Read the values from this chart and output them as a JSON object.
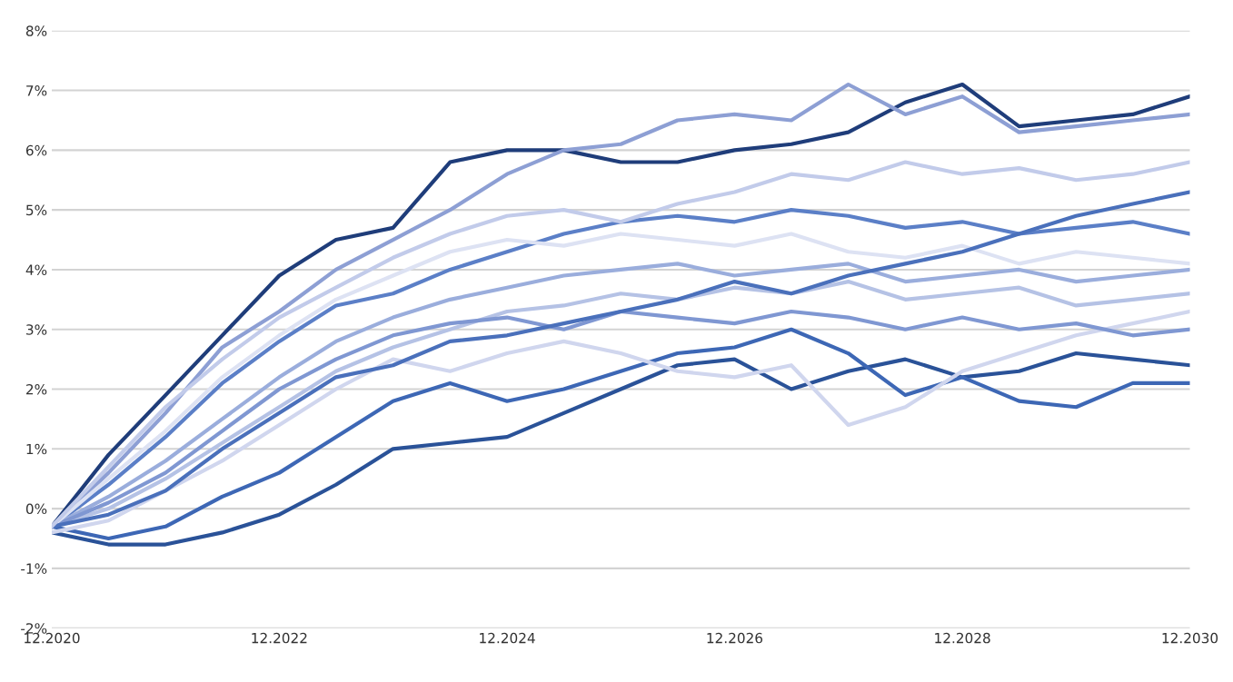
{
  "chart_data": {
    "type": "line",
    "x": [
      "2020-12",
      "2021-06",
      "2021-12",
      "2022-06",
      "2022-12",
      "2023-06",
      "2023-12",
      "2024-06",
      "2024-12",
      "2025-06",
      "2025-12",
      "2026-06",
      "2026-12",
      "2027-06",
      "2027-12",
      "2028-06",
      "2028-12",
      "2029-06",
      "2029-12",
      "2030-06",
      "2030-12"
    ],
    "series": [
      {
        "color": "#1f3d7a",
        "values": [
          -0.3,
          0.9,
          1.9,
          2.9,
          3.9,
          4.5,
          4.7,
          5.8,
          6.0,
          6.0,
          5.8,
          5.8,
          6.0,
          6.1,
          6.3,
          6.8,
          7.1,
          6.4,
          6.5,
          6.6,
          6.9
        ]
      },
      {
        "color": "#8d9fd4",
        "values": [
          -0.3,
          0.6,
          1.6,
          2.7,
          3.3,
          4.0,
          4.5,
          5.0,
          5.6,
          6.0,
          6.1,
          6.5,
          6.6,
          6.5,
          7.1,
          6.6,
          6.9,
          6.3,
          6.4,
          6.5,
          6.6
        ]
      },
      {
        "color": "#2a5298",
        "values": [
          -0.4,
          -0.6,
          -0.6,
          -0.4,
          -0.1,
          0.4,
          1.0,
          1.1,
          1.2,
          1.6,
          2.0,
          2.4,
          2.5,
          2.0,
          2.3,
          2.5,
          2.2,
          2.3,
          2.6,
          2.5,
          2.4
        ]
      },
      {
        "color": "#3d67b5",
        "values": [
          -0.3,
          -0.5,
          -0.3,
          0.2,
          0.6,
          1.2,
          1.8,
          2.1,
          1.8,
          2.0,
          2.3,
          2.6,
          2.7,
          3.0,
          2.6,
          1.9,
          2.2,
          1.8,
          1.7,
          2.1,
          2.1
        ]
      },
      {
        "color": "#d0d6ee",
        "values": [
          -0.4,
          -0.2,
          0.3,
          0.8,
          1.4,
          2.0,
          2.5,
          2.3,
          2.6,
          2.8,
          2.6,
          2.3,
          2.2,
          2.4,
          1.4,
          1.7,
          2.3,
          2.6,
          2.9,
          3.1,
          3.3
        ]
      },
      {
        "color": "#5b7fc7",
        "values": [
          -0.3,
          0.4,
          1.2,
          2.1,
          2.8,
          3.4,
          3.6,
          4.0,
          4.3,
          4.6,
          4.8,
          4.9,
          4.8,
          5.0,
          4.9,
          4.7,
          4.8,
          4.6,
          4.7,
          4.8,
          4.6
        ]
      },
      {
        "color": "#9aaddc",
        "values": [
          -0.3,
          0.2,
          0.8,
          1.5,
          2.2,
          2.8,
          3.2,
          3.5,
          3.7,
          3.9,
          4.0,
          4.1,
          3.9,
          4.0,
          4.1,
          3.8,
          3.9,
          4.0,
          3.8,
          3.9,
          4.0
        ]
      },
      {
        "color": "#b5c2e5",
        "values": [
          -0.3,
          0.0,
          0.5,
          1.1,
          1.7,
          2.3,
          2.7,
          3.0,
          3.3,
          3.4,
          3.6,
          3.5,
          3.7,
          3.6,
          3.8,
          3.5,
          3.6,
          3.7,
          3.4,
          3.5,
          3.6
        ]
      },
      {
        "color": "#7f97d2",
        "values": [
          -0.3,
          0.1,
          0.6,
          1.3,
          2.0,
          2.5,
          2.9,
          3.1,
          3.2,
          3.0,
          3.3,
          3.2,
          3.1,
          3.3,
          3.2,
          3.0,
          3.2,
          3.0,
          3.1,
          2.9,
          3.0
        ]
      },
      {
        "color": "#dde2f3",
        "values": [
          -0.3,
          0.5,
          1.3,
          2.2,
          2.9,
          3.5,
          3.9,
          4.3,
          4.5,
          4.4,
          4.6,
          4.5,
          4.4,
          4.6,
          4.3,
          4.2,
          4.4,
          4.1,
          4.3,
          4.2,
          4.1
        ]
      },
      {
        "color": "#4a70bb",
        "values": [
          -0.3,
          -0.1,
          0.3,
          1.0,
          1.6,
          2.2,
          2.4,
          2.8,
          2.9,
          3.1,
          3.3,
          3.5,
          3.8,
          3.6,
          3.9,
          4.1,
          4.3,
          4.6,
          4.9,
          5.1,
          5.3
        ]
      },
      {
        "color": "#c2cbea",
        "values": [
          -0.3,
          0.7,
          1.7,
          2.5,
          3.2,
          3.7,
          4.2,
          4.6,
          4.9,
          5.0,
          4.8,
          5.1,
          5.3,
          5.6,
          5.5,
          5.8,
          5.6,
          5.7,
          5.5,
          5.6,
          5.8
        ]
      }
    ],
    "xlim": [
      "2020-12",
      "2030-12"
    ],
    "xticks": [
      {
        "value": "2020-12",
        "label": "12.2020"
      },
      {
        "value": "2022-12",
        "label": "12.2022"
      },
      {
        "value": "2024-12",
        "label": "12.2024"
      },
      {
        "value": "2026-12",
        "label": "12.2026"
      },
      {
        "value": "2028-12",
        "label": "12.2028"
      },
      {
        "value": "2030-12",
        "label": "12.2030"
      }
    ],
    "ylim": [
      -2,
      8
    ],
    "yticks": [
      {
        "value": -2,
        "label": "-2%"
      },
      {
        "value": -1,
        "label": "-1%"
      },
      {
        "value": 0,
        "label": "0%"
      },
      {
        "value": 1,
        "label": "1%"
      },
      {
        "value": 2,
        "label": "2%"
      },
      {
        "value": 3,
        "label": "3%"
      },
      {
        "value": 4,
        "label": "4%"
      },
      {
        "value": 5,
        "label": "5%"
      },
      {
        "value": 6,
        "label": "6%"
      },
      {
        "value": 7,
        "label": "7%"
      },
      {
        "value": 8,
        "label": "8%"
      }
    ],
    "grid": "y",
    "line_style": "solid"
  }
}
